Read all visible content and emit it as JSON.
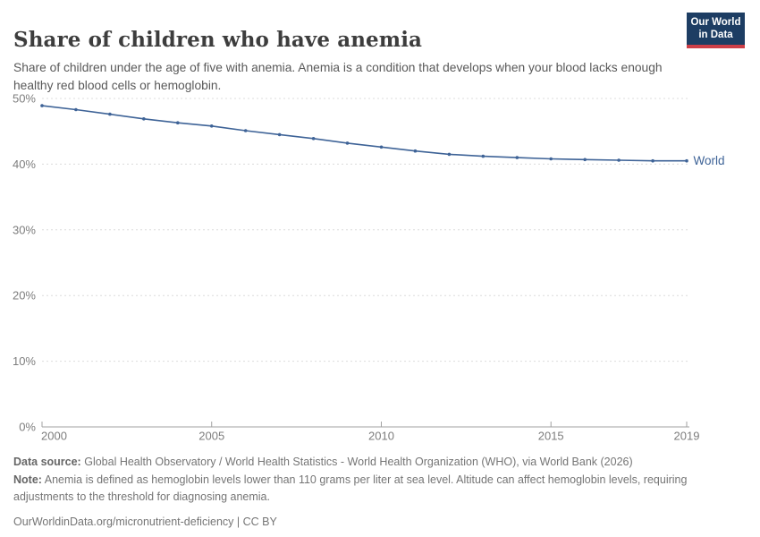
{
  "header": {
    "title": "Share of children who have anemia",
    "subtitle": "Share of children under the age of five with anemia. Anemia is a condition that develops when your blood lacks enough healthy red blood cells or hemoglobin.",
    "logo": {
      "line1": "Our World",
      "line2": "in Data",
      "bg_color": "#1d3d63",
      "accent_color": "#cd3e47"
    }
  },
  "chart_data": {
    "type": "line",
    "title": "Share of children who have anemia",
    "x": [
      2000,
      2001,
      2002,
      2003,
      2004,
      2005,
      2006,
      2007,
      2008,
      2009,
      2010,
      2011,
      2012,
      2013,
      2014,
      2015,
      2016,
      2017,
      2018,
      2019
    ],
    "series": [
      {
        "name": "World",
        "color": "#3e6397",
        "values": [
          48.9,
          48.3,
          47.6,
          46.9,
          46.3,
          45.8,
          45.1,
          44.5,
          43.9,
          43.2,
          42.6,
          42.0,
          41.5,
          41.2,
          41.0,
          40.8,
          40.7,
          40.6,
          40.5,
          40.5
        ]
      }
    ],
    "xlabel": "",
    "ylabel": "",
    "xlim": [
      2000,
      2019
    ],
    "ylim": [
      0,
      50
    ],
    "xticks": [
      2000,
      2005,
      2010,
      2015,
      2019
    ],
    "yticks": [
      0,
      10,
      20,
      30,
      40,
      50
    ],
    "ytick_suffix": "%",
    "grid": "horizontal-dashed",
    "legend_position": "end-of-line",
    "marker": "dot"
  },
  "footer": {
    "data_source_label": "Data source:",
    "data_source": "Global Health Observatory / World Health Statistics - World Health Organization (WHO), via World Bank (2026)",
    "note_label": "Note:",
    "note": "Anemia is defined as hemoglobin levels lower than 110 grams per liter at sea level. Altitude can affect hemoglobin levels, requiring adjustments to the threshold for diagnosing anemia.",
    "link": "OurWorldinData.org/micronutrient-deficiency | CC BY"
  },
  "colors": {
    "grid_line": "#dcdcdc",
    "axis_line": "#a1a1a1",
    "tick_label": "#7d7d7d"
  }
}
